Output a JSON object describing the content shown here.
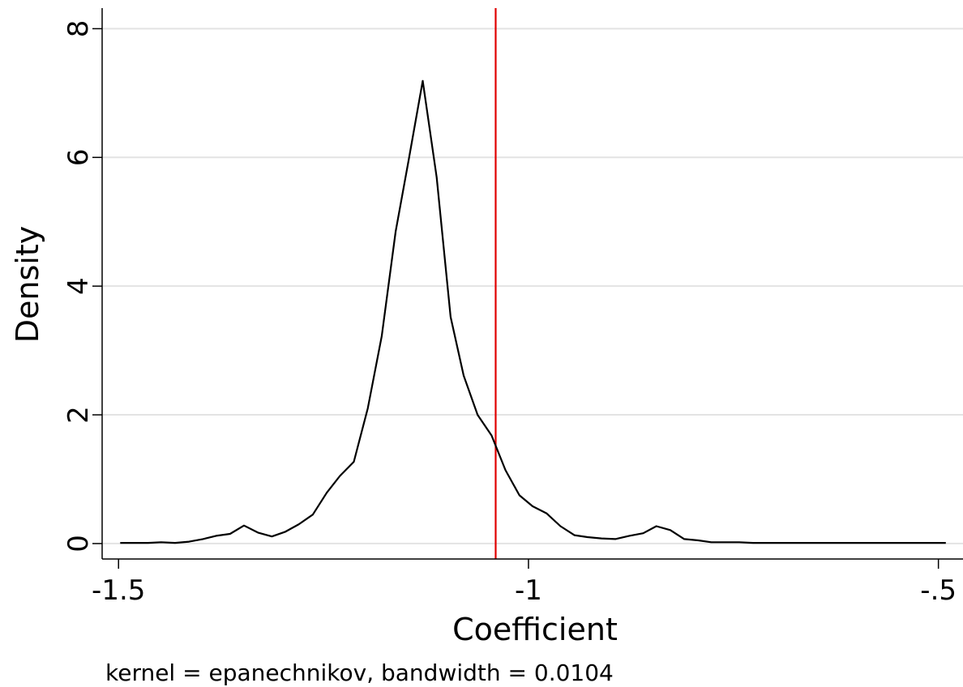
{
  "chart_data": {
    "type": "line",
    "xlabel": "Coefficient",
    "ylabel": "Density",
    "note": "kernel = epanechnikov, bandwidth = 0.0104",
    "xlim": [
      -1.52,
      -0.47
    ],
    "ylim": [
      -0.24,
      8.32
    ],
    "x_ticks": [
      -1.5,
      -1,
      -0.5
    ],
    "x_tick_labels": [
      "-1.5",
      "-1",
      "-.5"
    ],
    "y_ticks": [
      0,
      2,
      4,
      6,
      8
    ],
    "y_tick_labels": [
      "0",
      "2",
      "4",
      "6",
      "8"
    ],
    "grid": "horizontal",
    "colors": {
      "line": "#000000",
      "reference": "#e00000",
      "grid": "#e3e3e3"
    },
    "reference_line_x": -1.04,
    "series": [
      {
        "x": [
          -1.498,
          -1.481,
          -1.464,
          -1.448,
          -1.431,
          -1.414,
          -1.397,
          -1.381,
          -1.364,
          -1.347,
          -1.33,
          -1.313,
          -1.297,
          -1.28,
          -1.263,
          -1.246,
          -1.23,
          -1.213,
          -1.196,
          -1.179,
          -1.162,
          -1.146,
          -1.129,
          -1.112,
          -1.095,
          -1.079,
          -1.062,
          -1.045,
          -1.028,
          -1.011,
          -0.995,
          -0.978,
          -0.961,
          -0.944,
          -0.928,
          -0.911,
          -0.894,
          -0.877,
          -0.86,
          -0.844,
          -0.827,
          -0.81,
          -0.793,
          -0.777,
          -0.76,
          -0.743,
          -0.726,
          -0.709,
          -0.693,
          -0.676,
          -0.659,
          -0.642,
          -0.626,
          -0.609,
          -0.592,
          -0.575,
          -0.559,
          -0.542,
          -0.525,
          -0.508,
          -0.491
        ],
        "y": [
          0.01,
          0.01,
          0.01,
          0.02,
          0.01,
          0.03,
          0.07,
          0.12,
          0.15,
          0.28,
          0.17,
          0.11,
          0.18,
          0.3,
          0.45,
          0.79,
          1.05,
          1.27,
          2.1,
          3.22,
          4.85,
          5.97,
          7.19,
          5.69,
          3.52,
          2.61,
          2.0,
          1.68,
          1.14,
          0.75,
          0.58,
          0.47,
          0.27,
          0.13,
          0.1,
          0.08,
          0.07,
          0.12,
          0.16,
          0.27,
          0.21,
          0.07,
          0.05,
          0.02,
          0.02,
          0.02,
          0.01,
          0.01,
          0.01,
          0.01,
          0.01,
          0.01,
          0.01,
          0.01,
          0.01,
          0.01,
          0.01,
          0.01,
          0.01,
          0.01,
          0.01
        ]
      }
    ]
  }
}
